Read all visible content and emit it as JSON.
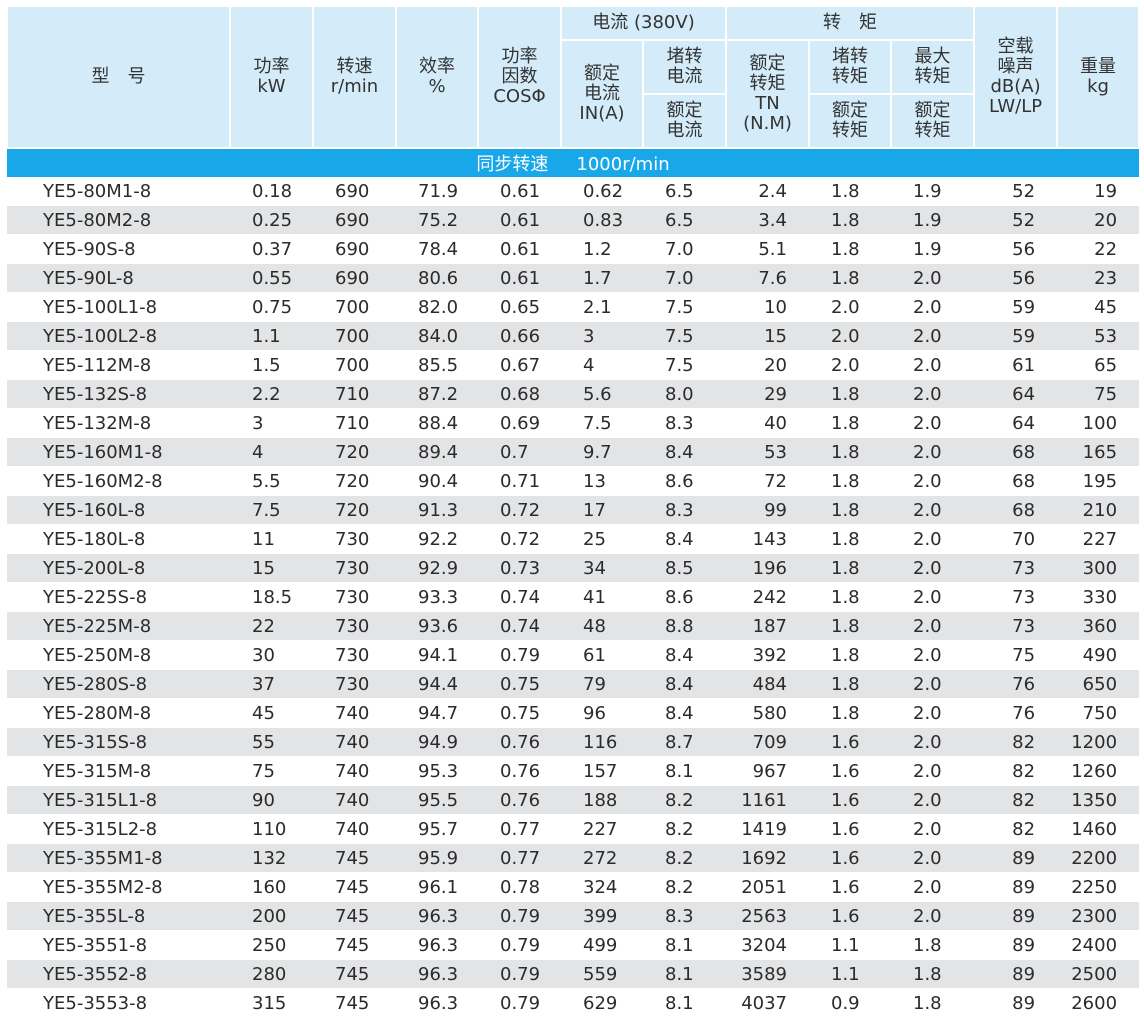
{
  "header": {
    "model": "型　号",
    "power": [
      "功率",
      "kW"
    ],
    "speed": [
      "转速",
      "r/min"
    ],
    "efficiency": [
      "效率",
      "%"
    ],
    "power_factor": [
      "功率",
      "因数",
      "COSΦ"
    ],
    "current_group": "电流 (380V)",
    "rated_current": [
      "额定",
      "电流",
      "IN(A)"
    ],
    "locked_current_top": [
      "堵转",
      "电流"
    ],
    "locked_current_bottom": [
      "额定",
      "电流"
    ],
    "torque_group": "转　矩",
    "rated_torque": [
      "额定",
      "转矩",
      "TN",
      "(N.M)"
    ],
    "locked_torque_top": [
      "堵转",
      "转矩"
    ],
    "locked_torque_bottom": [
      "额定",
      "转矩"
    ],
    "max_torque_top": [
      "最大",
      "转矩"
    ],
    "max_torque_bottom": [
      "额定",
      "转矩"
    ],
    "noise": [
      "空载",
      "噪声",
      "dB(A)",
      "LW/LP"
    ],
    "weight": [
      "重量",
      "kg"
    ]
  },
  "section": {
    "label": "同步转速",
    "value": "1000r/min"
  },
  "rows": [
    [
      "YE5-80M1-8",
      "0.18",
      "690",
      "71.9",
      "0.61",
      "0.62",
      "6.5",
      "2.4",
      "1.8",
      "1.9",
      "52",
      "19"
    ],
    [
      "YE5-80M2-8",
      "0.25",
      "690",
      "75.2",
      "0.61",
      "0.83",
      "6.5",
      "3.4",
      "1.8",
      "1.9",
      "52",
      "20"
    ],
    [
      "YE5-90S-8",
      "0.37",
      "690",
      "78.4",
      "0.61",
      "1.2",
      "7.0",
      "5.1",
      "1.8",
      "1.9",
      "56",
      "22"
    ],
    [
      "YE5-90L-8",
      "0.55",
      "690",
      "80.6",
      "0.61",
      "1.7",
      "7.0",
      "7.6",
      "1.8",
      "2.0",
      "56",
      "23"
    ],
    [
      "YE5-100L1-8",
      "0.75",
      "700",
      "82.0",
      "0.65",
      "2.1",
      "7.5",
      "10",
      "2.0",
      "2.0",
      "59",
      "45"
    ],
    [
      "YE5-100L2-8",
      "1.1",
      "700",
      "84.0",
      "0.66",
      "3",
      "7.5",
      "15",
      "2.0",
      "2.0",
      "59",
      "53"
    ],
    [
      "YE5-112M-8",
      "1.5",
      "700",
      "85.5",
      "0.67",
      "4",
      "7.5",
      "20",
      "2.0",
      "2.0",
      "61",
      "65"
    ],
    [
      "YE5-132S-8",
      "2.2",
      "710",
      "87.2",
      "0.68",
      "5.6",
      "8.0",
      "29",
      "1.8",
      "2.0",
      "64",
      "75"
    ],
    [
      "YE5-132M-8",
      "3",
      "710",
      "88.4",
      "0.69",
      "7.5",
      "8.3",
      "40",
      "1.8",
      "2.0",
      "64",
      "100"
    ],
    [
      "YE5-160M1-8",
      "4",
      "720",
      "89.4",
      "0.7",
      "9.7",
      "8.4",
      "53",
      "1.8",
      "2.0",
      "68",
      "165"
    ],
    [
      "YE5-160M2-8",
      "5.5",
      "720",
      "90.4",
      "0.71",
      "13",
      "8.6",
      "72",
      "1.8",
      "2.0",
      "68",
      "195"
    ],
    [
      "YE5-160L-8",
      "7.5",
      "720",
      "91.3",
      "0.72",
      "17",
      "8.3",
      "99",
      "1.8",
      "2.0",
      "68",
      "210"
    ],
    [
      "YE5-180L-8",
      "11",
      "730",
      "92.2",
      "0.72",
      "25",
      "8.4",
      "143",
      "1.8",
      "2.0",
      "70",
      "227"
    ],
    [
      "YE5-200L-8",
      "15",
      "730",
      "92.9",
      "0.73",
      "34",
      "8.5",
      "196",
      "1.8",
      "2.0",
      "73",
      "300"
    ],
    [
      "YE5-225S-8",
      "18.5",
      "730",
      "93.3",
      "0.74",
      "41",
      "8.6",
      "242",
      "1.8",
      "2.0",
      "73",
      "330"
    ],
    [
      "YE5-225M-8",
      "22",
      "730",
      "93.6",
      "0.74",
      "48",
      "8.8",
      "187",
      "1.8",
      "2.0",
      "73",
      "360"
    ],
    [
      "YE5-250M-8",
      "30",
      "730",
      "94.1",
      "0.79",
      "61",
      "8.4",
      "392",
      "1.8",
      "2.0",
      "75",
      "490"
    ],
    [
      "YE5-280S-8",
      "37",
      "730",
      "94.4",
      "0.75",
      "79",
      "8.4",
      "484",
      "1.8",
      "2.0",
      "76",
      "650"
    ],
    [
      "YE5-280M-8",
      "45",
      "740",
      "94.7",
      "0.75",
      "96",
      "8.4",
      "580",
      "1.8",
      "2.0",
      "76",
      "750"
    ],
    [
      "YE5-315S-8",
      "55",
      "740",
      "94.9",
      "0.76",
      "116",
      "8.7",
      "709",
      "1.6",
      "2.0",
      "82",
      "1200"
    ],
    [
      "YE5-315M-8",
      "75",
      "740",
      "95.3",
      "0.76",
      "157",
      "8.1",
      "967",
      "1.6",
      "2.0",
      "82",
      "1260"
    ],
    [
      "YE5-315L1-8",
      "90",
      "740",
      "95.5",
      "0.76",
      "188",
      "8.2",
      "1161",
      "1.6",
      "2.0",
      "82",
      "1350"
    ],
    [
      "YE5-315L2-8",
      "110",
      "740",
      "95.7",
      "0.77",
      "227",
      "8.2",
      "1419",
      "1.6",
      "2.0",
      "82",
      "1460"
    ],
    [
      "YE5-355M1-8",
      "132",
      "745",
      "95.9",
      "0.77",
      "272",
      "8.2",
      "1692",
      "1.6",
      "2.0",
      "89",
      "2200"
    ],
    [
      "YE5-355M2-8",
      "160",
      "745",
      "96.1",
      "0.78",
      "324",
      "8.2",
      "2051",
      "1.6",
      "2.0",
      "89",
      "2250"
    ],
    [
      "YE5-355L-8",
      "200",
      "745",
      "96.3",
      "0.79",
      "399",
      "8.3",
      "2563",
      "1.6",
      "2.0",
      "89",
      "2300"
    ],
    [
      "YE5-3551-8",
      "250",
      "745",
      "96.3",
      "0.79",
      "499",
      "8.1",
      "3204",
      "1.1",
      "1.8",
      "89",
      "2400"
    ],
    [
      "YE5-3552-8",
      "280",
      "745",
      "96.3",
      "0.79",
      "559",
      "8.1",
      "3589",
      "1.1",
      "1.8",
      "89",
      "2500"
    ],
    [
      "YE5-3553-8",
      "315",
      "745",
      "96.3",
      "0.79",
      "629",
      "8.1",
      "4037",
      "0.9",
      "1.8",
      "89",
      "2600"
    ]
  ]
}
